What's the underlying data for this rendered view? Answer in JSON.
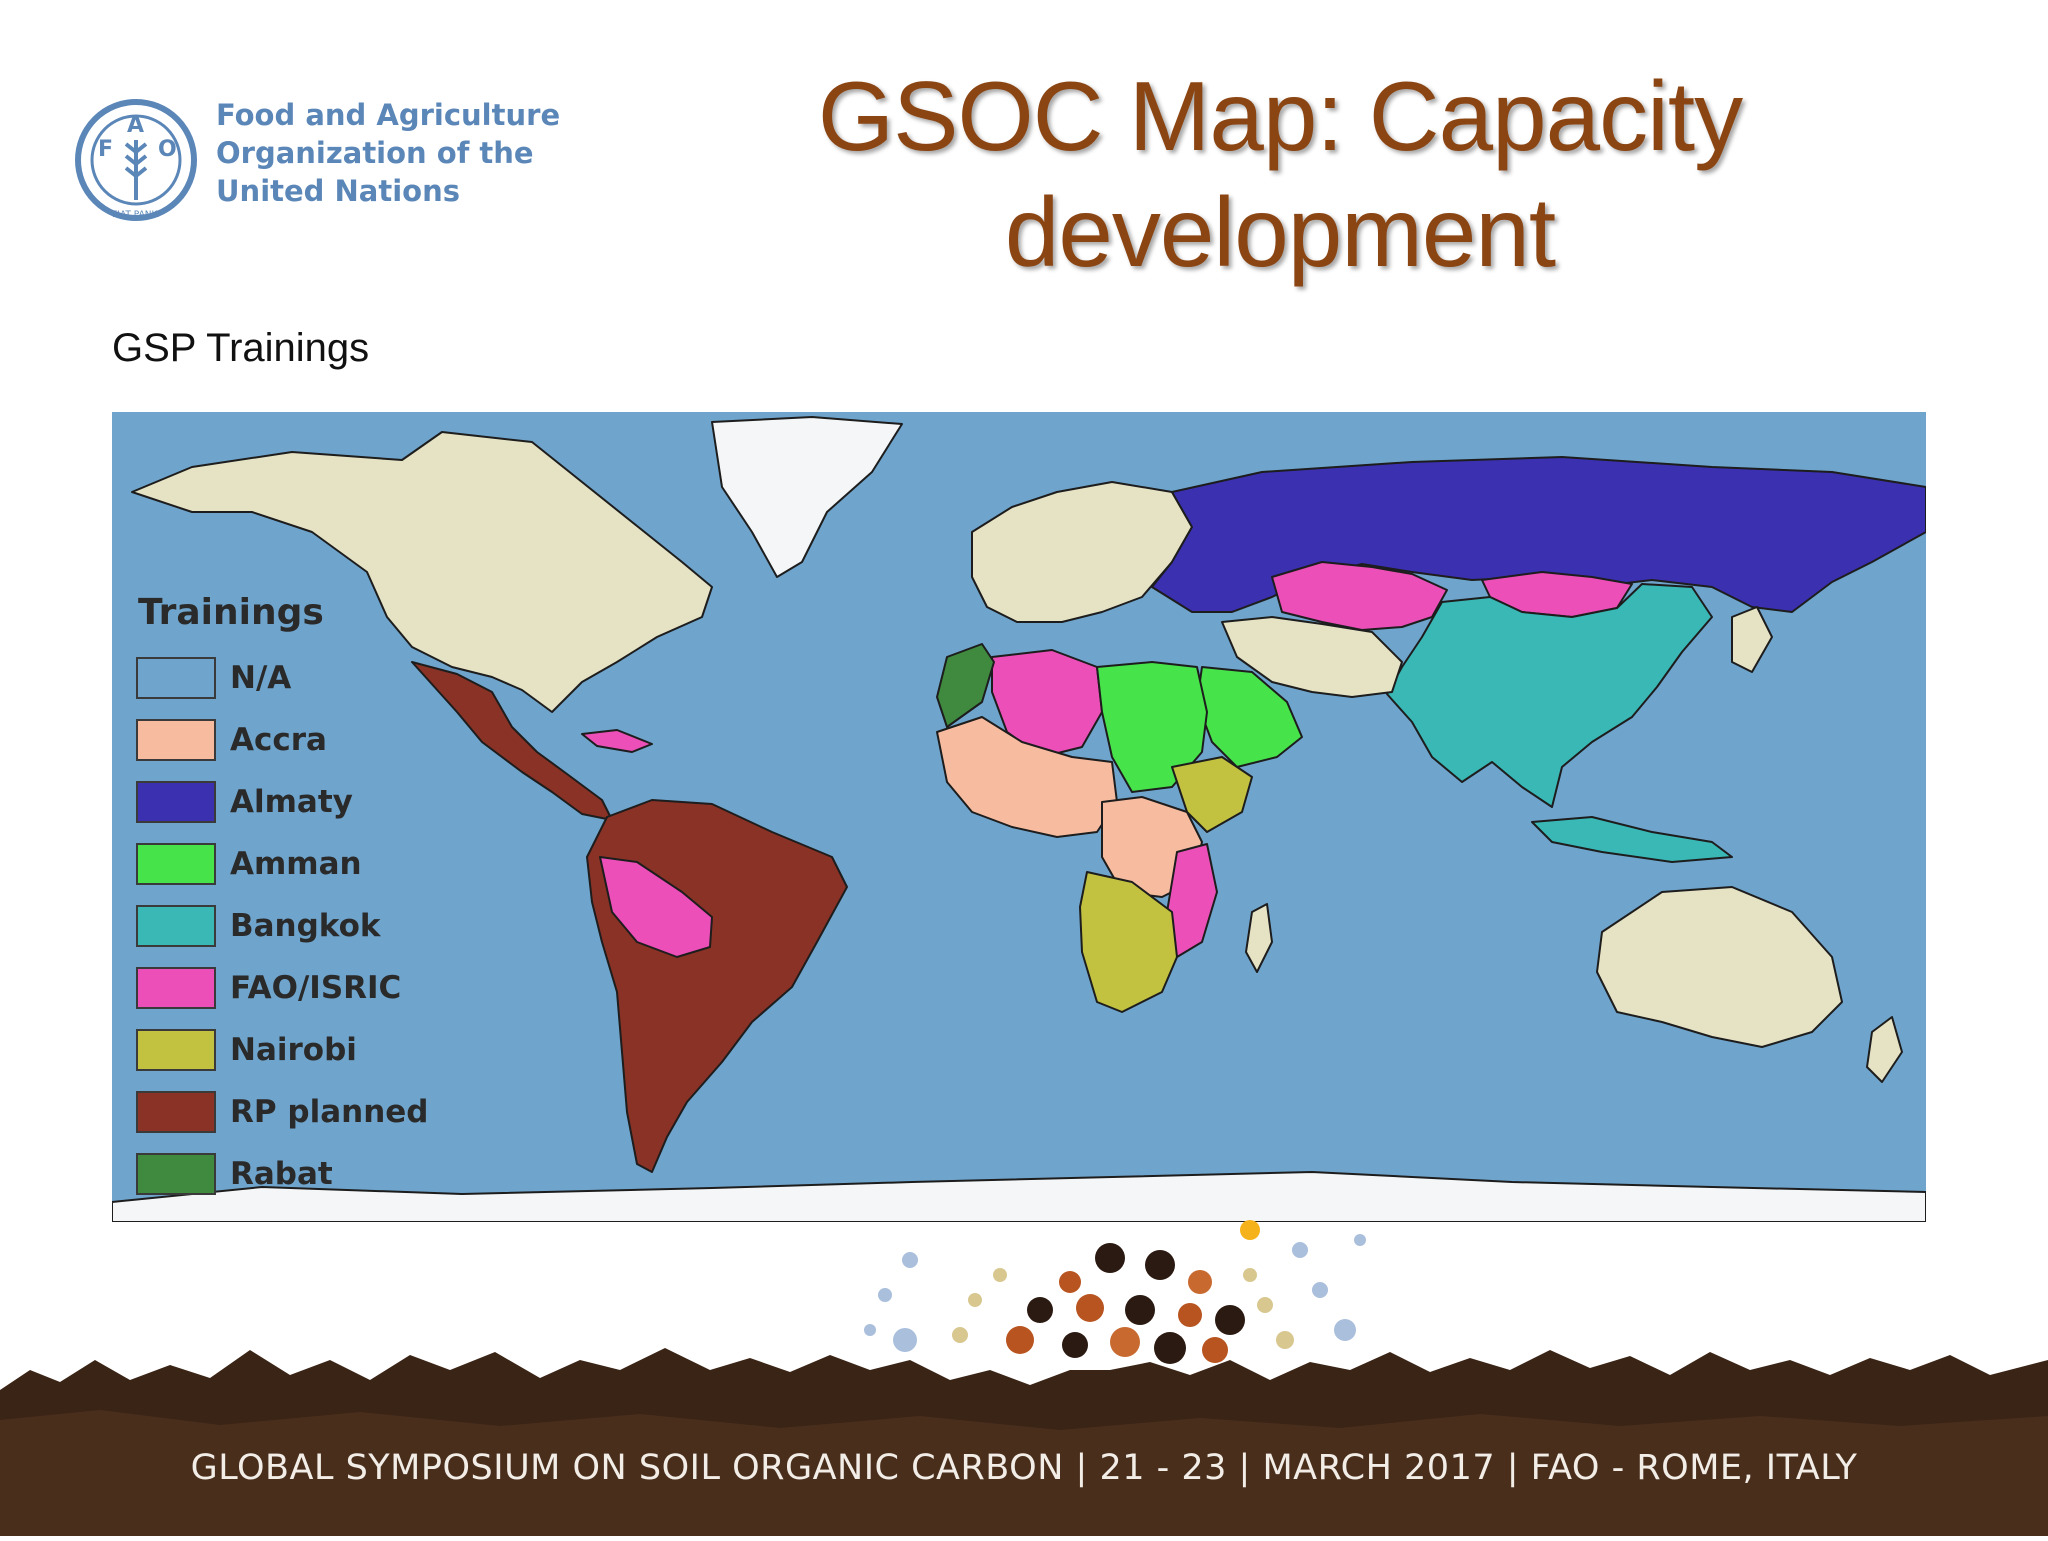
{
  "logo": {
    "lines": [
      "Food and Agriculture",
      "Organization of the",
      "United Nations"
    ],
    "emblem_letters": [
      "F",
      "A",
      "O"
    ],
    "emblem_motto": "FIAT PANIS"
  },
  "title": {
    "line1": "GSOC Map: Capacity",
    "line2": "development"
  },
  "subtitle": "GSP Trainings",
  "map": {
    "legend_title": "Trainings",
    "legend": [
      {
        "label": "N/A",
        "color": "#6fa4cc"
      },
      {
        "label": "Accra",
        "color": "#f7bca0"
      },
      {
        "label": "Almaty",
        "color": "#3b30b0"
      },
      {
        "label": "Amman",
        "color": "#47e34a"
      },
      {
        "label": "Bangkok",
        "color": "#39b8b6"
      },
      {
        "label": "FAO/ISRIC",
        "color": "#ec4fb8"
      },
      {
        "label": "Nairobi",
        "color": "#c3c240"
      },
      {
        "label": "RP planned",
        "color": "#8a3226"
      },
      {
        "label": "Rabat",
        "color": "#3f8a3f"
      }
    ],
    "ocean_color": "#6fa4cc",
    "land_na_color": "#e6e2c4",
    "ice_color": "#f4f6f8"
  },
  "footer": {
    "text": "GLOBAL SYMPOSIUM ON SOIL ORGANIC CARBON | 21 - 23 | MARCH 2017 | FAO - ROME, ITALY"
  }
}
